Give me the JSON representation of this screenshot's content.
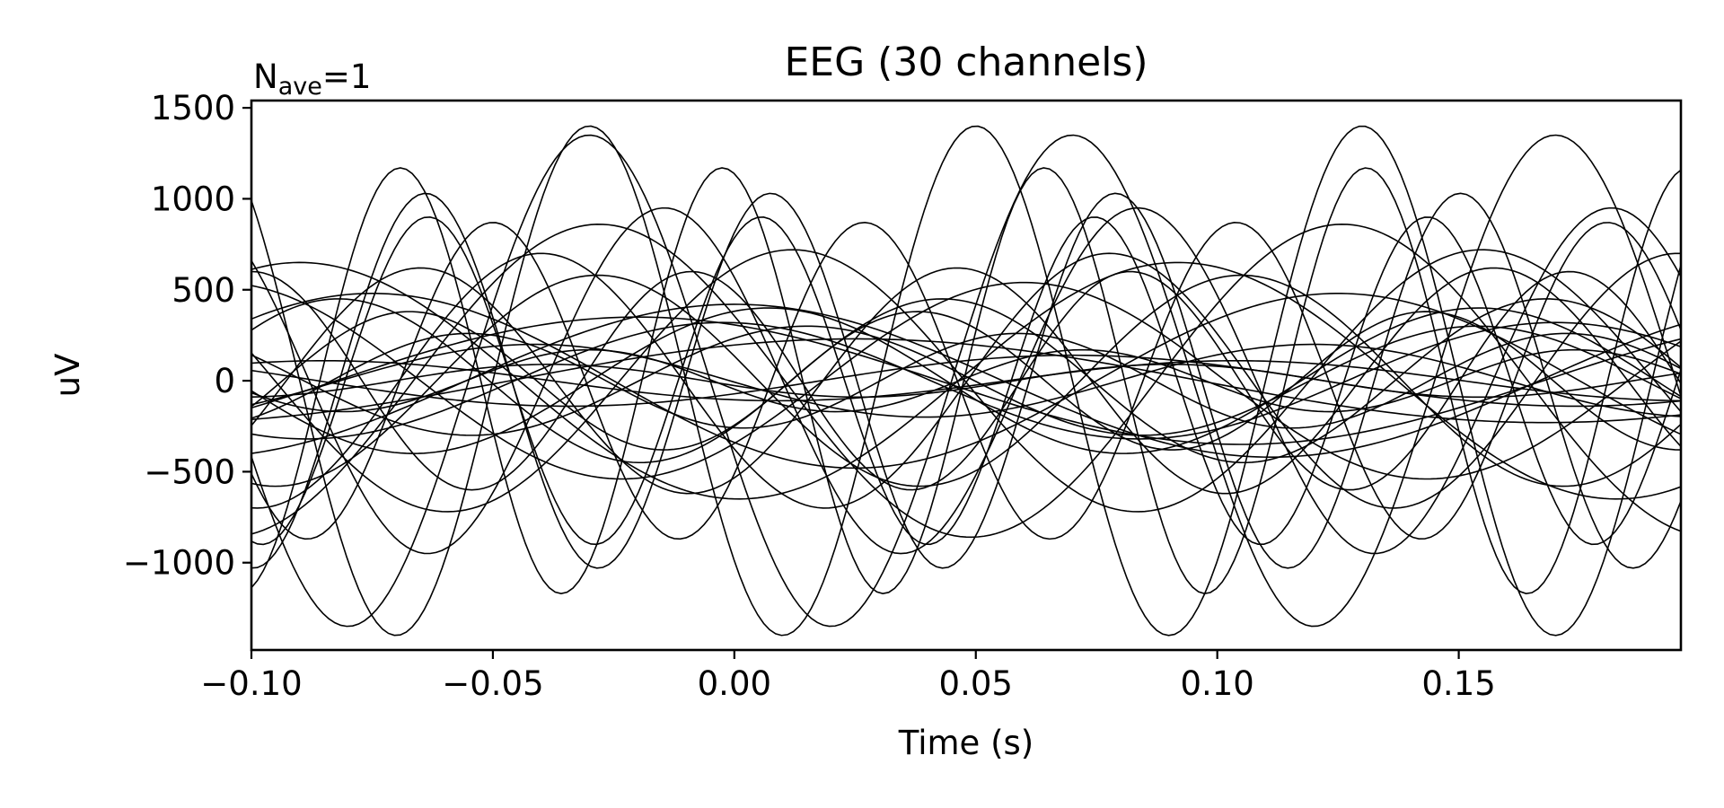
{
  "chart_data": {
    "type": "line",
    "title": "EEG (30 channels)",
    "nave_label": {
      "base": "N",
      "sub": "ave",
      "suffix": "=1"
    },
    "xlabel": "Time (s)",
    "ylabel": "uV",
    "xlim": [
      -0.1,
      0.196
    ],
    "ylim": [
      -1480,
      1540
    ],
    "xticks": [
      -0.1,
      -0.05,
      0.0,
      0.05,
      0.1,
      0.15
    ],
    "xtick_labels": [
      "−0.10",
      "−0.05",
      "0.00",
      "0.05",
      "0.10",
      "0.15"
    ],
    "yticks": [
      1500,
      1000,
      500,
      0,
      -500,
      -1000
    ],
    "ytick_labels": [
      "1500",
      "1000",
      "500",
      "0",
      "−500",
      "−1000"
    ],
    "grid": false,
    "line_color": "#000000",
    "series": [
      {
        "amp": 1400,
        "freq": 12.5,
        "phase": 0.05
      },
      {
        "amp": 1350,
        "freq": 10.0,
        "phase": 0.07
      },
      {
        "amp": 1170,
        "freq": 15.0,
        "phase": -0.0025
      },
      {
        "amp": 1030,
        "freq": 14.0,
        "phase": 0.0075
      },
      {
        "amp": 950,
        "freq": 10.2,
        "phase": -0.0145
      },
      {
        "amp": 900,
        "freq": 14.5,
        "phase": 0.0056
      },
      {
        "amp": 870,
        "freq": 13.0,
        "phase": -0.05
      },
      {
        "amp": 860,
        "freq": 6.5,
        "phase": -0.028
      },
      {
        "amp": 720,
        "freq": 7.0,
        "phase": 0.012
      },
      {
        "amp": 700,
        "freq": 8.5,
        "phase": -0.04
      },
      {
        "amp": 650,
        "freq": 5.5,
        "phase": -0.09
      },
      {
        "amp": 620,
        "freq": 9.0,
        "phase": -0.065
      },
      {
        "amp": 600,
        "freq": 11.0,
        "phase": 0.082
      },
      {
        "amp": 580,
        "freq": 7.5,
        "phase": 0.105
      },
      {
        "amp": 540,
        "freq": 6.0,
        "phase": 0.06
      },
      {
        "amp": 480,
        "freq": 5.0,
        "phase": -0.075
      },
      {
        "amp": 450,
        "freq": 8.0,
        "phase": 0.043
      },
      {
        "amp": 420,
        "freq": 4.5,
        "phase": 0.0
      },
      {
        "amp": 400,
        "freq": 6.8,
        "phase": -0.14
      },
      {
        "amp": 380,
        "freq": 9.5,
        "phase": 0.038
      },
      {
        "amp": 350,
        "freq": 4.0,
        "phase": -0.02
      },
      {
        "amp": 320,
        "freq": 5.8,
        "phase": 0.17
      },
      {
        "amp": 300,
        "freq": 7.2,
        "phase": 0.015
      },
      {
        "amp": 260,
        "freq": 8.8,
        "phase": -0.055
      },
      {
        "amp": 230,
        "freq": 3.5,
        "phase": 0.025
      },
      {
        "amp": 200,
        "freq": 6.2,
        "phase": 0.12
      },
      {
        "amp": 170,
        "freq": 9.8,
        "phase": -0.03
      },
      {
        "amp": 140,
        "freq": 4.8,
        "phase": 0.07
      },
      {
        "amp": 110,
        "freq": 5.3,
        "phase": -0.085
      },
      {
        "amp": 90,
        "freq": 7.8,
        "phase": 0.09
      }
    ]
  }
}
